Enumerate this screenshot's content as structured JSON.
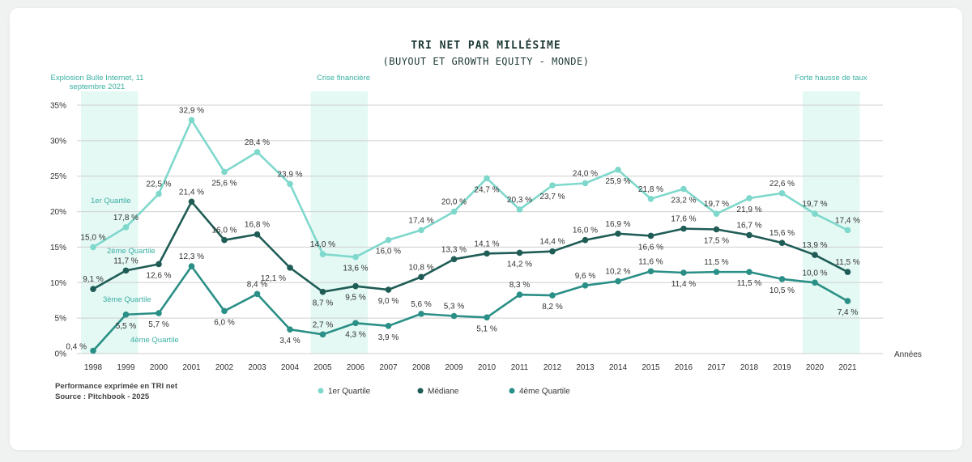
{
  "chart_data": {
    "type": "line",
    "title": "TRI NET PAR MILLÉSIME",
    "subtitle": "(BUYOUT ET GROWTH EQUITY - MONDE)",
    "xlabel": "Années",
    "ylabel": "",
    "ylim": [
      0,
      35
    ],
    "yticks": [
      "0%",
      "5%",
      "10%",
      "15%",
      "20%",
      "25%",
      "30%",
      "35%"
    ],
    "grid": true,
    "legend_position": "bottom",
    "categories": [
      "1998",
      "1999",
      "2000",
      "2001",
      "2002",
      "2003",
      "2004",
      "2005",
      "2006",
      "2007",
      "2008",
      "2009",
      "2010",
      "2011",
      "2012",
      "2013",
      "2014",
      "2015",
      "2016",
      "2017",
      "2018",
      "2019",
      "2020",
      "2021"
    ],
    "series": [
      {
        "name": "1er Quartile",
        "color": "#7fd8cc",
        "values": [
          15.0,
          17.8,
          22.5,
          32.9,
          25.6,
          28.4,
          23.9,
          14.0,
          13.6,
          16.0,
          17.4,
          20.0,
          24.7,
          20.3,
          23.7,
          24.0,
          25.9,
          21.8,
          23.2,
          19.7,
          21.9,
          22.6,
          19.7,
          17.4
        ],
        "labels": [
          "15,0 %",
          "17,8 %",
          "22,5 %",
          "32,9 %",
          "25,6 %",
          "28,4 %",
          "23,9 %",
          "14,0 %",
          "13,6 %",
          "16,0 %",
          "17,4 %",
          "20,0 %",
          "24,7 %",
          "20,3 %",
          "23,7 %",
          "24,0 %",
          "25,9 %",
          "21,8 %",
          "23,2 %",
          "19,7 %",
          "21,9 %",
          "22,6 %",
          "19,7 %",
          "17,4 %"
        ]
      },
      {
        "name": "Médiane",
        "color": "#1f5c55",
        "values": [
          9.1,
          11.7,
          12.6,
          21.4,
          16.0,
          16.8,
          12.1,
          8.7,
          9.5,
          9.0,
          10.8,
          13.3,
          14.1,
          14.2,
          14.4,
          16.0,
          16.9,
          16.6,
          17.6,
          17.5,
          16.7,
          15.6,
          13.9,
          11.5
        ],
        "labels": [
          "9,1 %",
          "11,7 %",
          "12,6 %",
          "21,4 %",
          "16,0 %",
          "16,8 %",
          "12,1 %",
          "8,7 %",
          "9,5 %",
          "9,0 %",
          "10,8 %",
          "13,3 %",
          "14,1 %",
          "14,2 %",
          "14,4 %",
          "16,0 %",
          "16,9 %",
          "16,6 %",
          "17,6 %",
          "17,5 %",
          "16,7 %",
          "15,6 %",
          "13,9 %",
          "11,5 %"
        ]
      },
      {
        "name": "4ème Quartile",
        "color": "#2a8f86",
        "values": [
          0.4,
          5.5,
          5.7,
          12.3,
          6.0,
          8.4,
          3.4,
          2.7,
          4.3,
          3.9,
          5.6,
          5.3,
          5.1,
          8.3,
          8.2,
          9.6,
          10.2,
          11.6,
          11.4,
          11.5,
          11.5,
          10.5,
          10.0,
          7.4
        ],
        "labels": [
          "0,4 %",
          "5,5 %",
          "5,7 %",
          "12,3 %",
          "6,0 %",
          "8,4 %",
          "3,4 %",
          "2,7 %",
          "4,3 %",
          "3,9 %",
          "5,6 %",
          "5,3 %",
          "5,1 %",
          "8,3 %",
          "8,2 %",
          "9,6 %",
          "10,2 %",
          "11,6 %",
          "11,4 %",
          "11,5 %",
          "11,5 %",
          "10,5 %",
          "10,0 %",
          "7,4 %"
        ]
      }
    ],
    "highlight_periods": [
      {
        "label": "Explosion Bulle Internet, 11 septembre 2021",
        "label_lines": [
          "Explosion Bulle Internet, 11",
          "septembre 2021"
        ],
        "from": "1998",
        "to": "1999"
      },
      {
        "label": "Crise financière",
        "label_lines": [
          "Crise financière"
        ],
        "from": "2005",
        "to": "2006"
      },
      {
        "label": "Forte hausse de taux",
        "label_lines": [
          "Forte hausse de taux"
        ],
        "from": "2020",
        "to": "2021"
      }
    ],
    "band_color": "#e4f8f4",
    "inline_labels": [
      "1er Quartile",
      "2ème Quartile",
      "3ème Quartile",
      "4ème Quartile"
    ],
    "notes": [
      "Performance exprimée en TRI net",
      "Source : Pitchbook - 2025"
    ]
  }
}
